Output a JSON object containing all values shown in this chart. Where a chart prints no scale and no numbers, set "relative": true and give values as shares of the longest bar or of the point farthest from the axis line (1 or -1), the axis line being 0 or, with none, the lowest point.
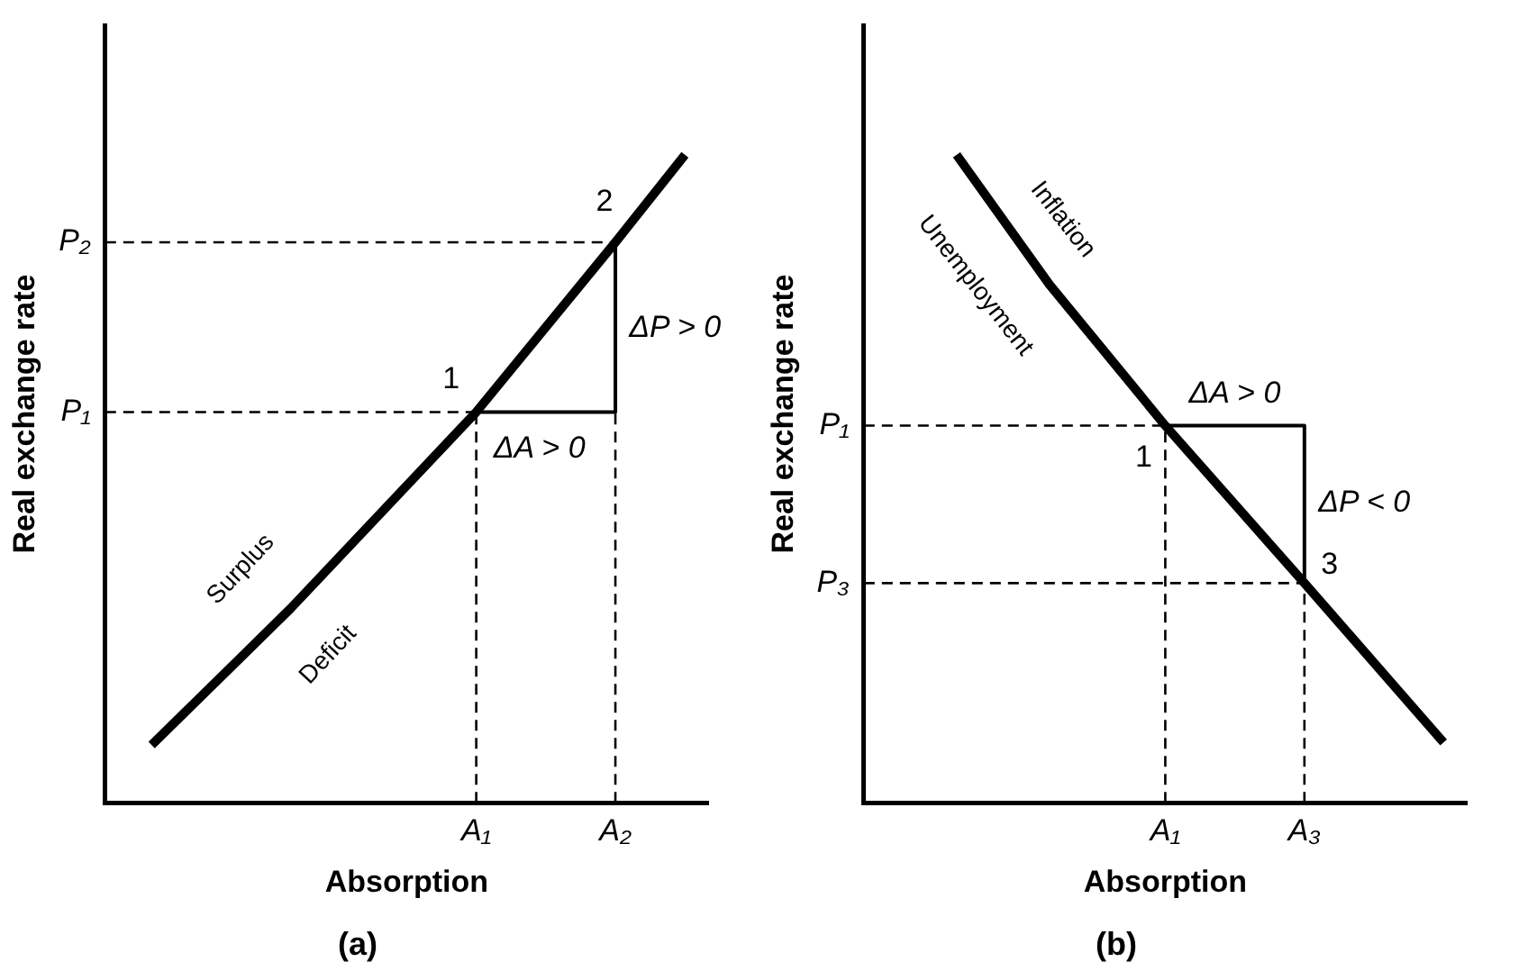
{
  "chart_data": [
    {
      "type": "line",
      "title": "(a)",
      "xlabel": "Absorption",
      "ylabel": "Real exchange rate",
      "relative": true,
      "legend": false,
      "grid": false,
      "marker": "none",
      "categories": [
        null,
        null,
        null,
        null,
        null,
        null,
        null,
        null,
        null,
        null,
        null,
        null,
        null,
        null,
        null,
        null,
        "A₁",
        null,
        null,
        null,
        null,
        null,
        "A₂",
        null,
        null,
        null,
        null
      ],
      "series": [
        {
          "color": "#000000",
          "values": [
            null,
            null,
            0.089,
            null,
            null,
            null,
            null,
            null,
            0.3,
            null,
            null,
            null,
            null,
            null,
            null,
            null,
            0.603,
            null,
            null,
            null,
            null,
            null,
            0.865,
            null,
            null,
            1,
            null
          ]
        },
        {
          "type": "step",
          "color": "#000000",
          "values": [
            null,
            null,
            null,
            null,
            null,
            null,
            null,
            null,
            null,
            null,
            null,
            null,
            null,
            null,
            null,
            null,
            0.603,
            null,
            null,
            null,
            null,
            null,
            0.865,
            null,
            null,
            null,
            null
          ]
        }
      ],
      "ref_lines": [
        {
          "axis": "y",
          "value": 0.603,
          "label": "P₁",
          "line_style": "dashed"
        },
        {
          "axis": "y",
          "value": 0.865,
          "label": "P₂",
          "line_style": "dashed"
        },
        {
          "axis": "x",
          "value": "A₁",
          "line_style": "dashed"
        },
        {
          "axis": "x",
          "value": "A₂",
          "line_style": "dashed"
        }
      ],
      "annotations": [
        {
          "text": "1",
          "x": "A₁",
          "y": 0.603
        },
        {
          "text": "2",
          "x": "A₂",
          "y": 0.865
        },
        "ΔA > 0",
        "ΔP > 0",
        "Surplus",
        "Deficit"
      ]
    },
    {
      "type": "line",
      "title": "(b)",
      "xlabel": "Absorption",
      "ylabel": "Real exchange rate",
      "relative": true,
      "legend": false,
      "grid": false,
      "marker": "none",
      "categories": [
        null,
        null,
        null,
        null,
        null,
        null,
        null,
        null,
        null,
        null,
        null,
        null,
        null,
        "A₁",
        null,
        null,
        null,
        null,
        null,
        "A₃",
        null,
        null,
        null,
        null,
        null,
        null,
        null
      ],
      "series": [
        {
          "color": "#000000",
          "values": [
            null,
            null,
            null,
            null,
            1,
            null,
            null,
            null,
            0.8,
            null,
            null,
            null,
            null,
            0.582,
            null,
            null,
            null,
            null,
            null,
            0.339,
            null,
            null,
            null,
            null,
            null,
            0.093,
            null
          ]
        },
        {
          "type": "step",
          "color": "#000000",
          "values": [
            null,
            null,
            null,
            null,
            null,
            null,
            null,
            null,
            null,
            null,
            null,
            null,
            null,
            0.582,
            null,
            null,
            null,
            null,
            null,
            0.339,
            null,
            null,
            null,
            null,
            null,
            null,
            null
          ]
        }
      ],
      "ref_lines": [
        {
          "axis": "y",
          "value": 0.582,
          "label": "P₁",
          "line_style": "dashed"
        },
        {
          "axis": "y",
          "value": 0.339,
          "label": "P₃",
          "line_style": "dashed"
        },
        {
          "axis": "x",
          "value": "A₁",
          "line_style": "dashed"
        },
        {
          "axis": "x",
          "value": "A₃",
          "line_style": "dashed"
        }
      ],
      "annotations": [
        {
          "text": "1",
          "x": "A₁",
          "y": 0.582
        },
        {
          "text": "3",
          "x": "A₃",
          "y": 0.339
        },
        "ΔA > 0",
        "ΔP < 0",
        "Inflation",
        "Unemployment"
      ]
    }
  ]
}
